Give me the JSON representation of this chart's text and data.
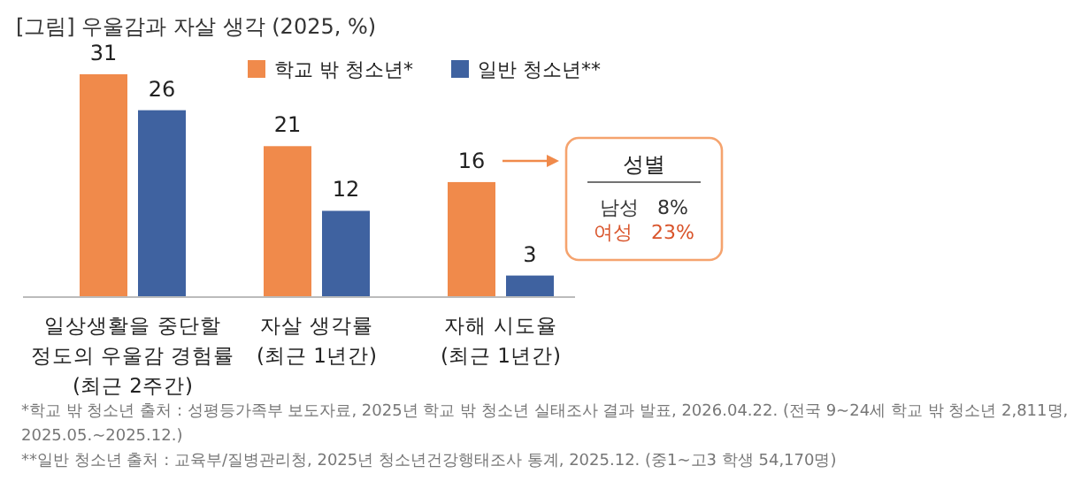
{
  "chart_data": {
    "type": "bar",
    "title": "[그림] 우울감과 자살 생각 (2025, %)",
    "categories": [
      "일상생활을 중단할\n정도의 우울감 경험률\n(최근 2주간)",
      "자살 생각률\n(최근 1년간)",
      "자해 시도율\n(최근 1년간)"
    ],
    "series": [
      {
        "name": "학교 밖 청소년*",
        "color": "#f08a4b",
        "values": [
          31,
          21,
          16
        ]
      },
      {
        "name": "일반 청소년**",
        "color": "#3f62a0",
        "values": [
          26,
          12,
          3
        ]
      }
    ],
    "data_labels": true,
    "legend": "top",
    "annotations": [
      "성별",
      "남성   8%",
      "여성   23%",
      "*학교 밖 청소년 출처 : 성평등가족부 보도자료, 2025년 학교 밖 청소년 실태조사 결과 발표, 2026.04.22. (전국 9~24세 학교 밖 청소년 2,811명, 2025.05.~2025.12.)",
      "**일반 청소년 출처 : 교육부/질병관리청, 2025년 청소년건강행태조사 통계, 2025.12. (중1~고3 학생 54,170명)"
    ]
  }
}
